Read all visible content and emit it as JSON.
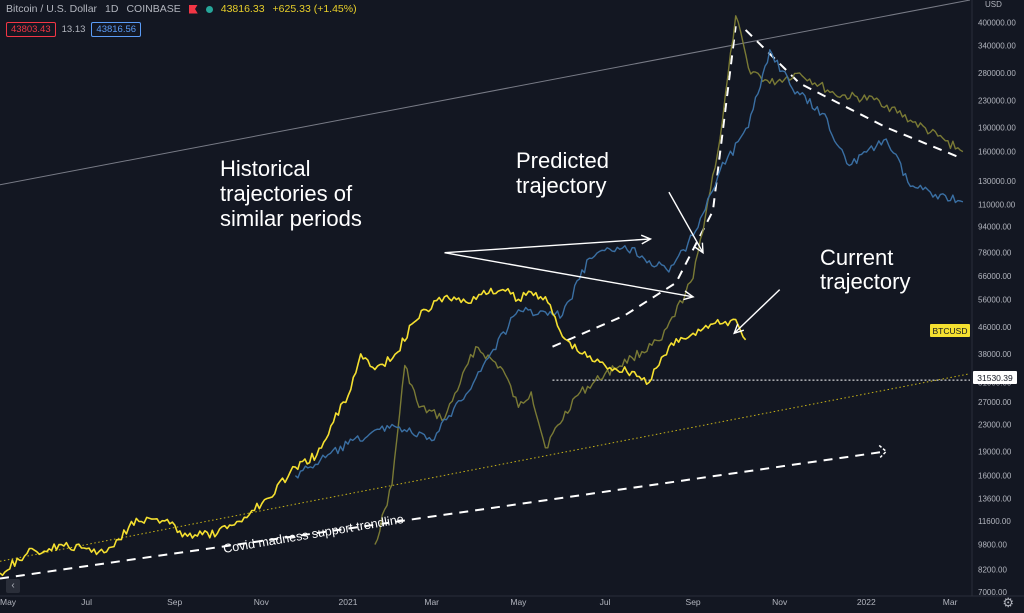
{
  "header": {
    "symbol": "Bitcoin / U.S. Dollar",
    "interval": "1D",
    "exchange": "COINBASE",
    "last_price": "43816.33",
    "change": "+625.33 (+1.45%)",
    "bid": "43803.43",
    "spread": "13.13",
    "ask": "43816.56"
  },
  "axis_currency": "USD",
  "price_tag": {
    "label": "BTCUSD"
  },
  "level_tag": "31530.39",
  "annotations": {
    "historical": [
      "Historical",
      "trajectories of",
      "similar periods"
    ],
    "predicted": [
      "Predicted",
      "trajectory"
    ],
    "current": [
      "Current",
      "trajectory"
    ],
    "support": "Covid madness support trendline"
  },
  "colors": {
    "background": "#131722",
    "current": "#f5e030",
    "hist_blue": "#3a6fa3",
    "hist_olive": "#7a7a35",
    "axis_text": "#b2b5be",
    "dashed": "#ffffff"
  },
  "icons": [
    "flag-icon",
    "market-open-icon",
    "collapse-icon",
    "settings-icon"
  ],
  "chart_data": {
    "type": "line",
    "yscale": "log",
    "ylim": [
      6800,
      470000
    ],
    "xlim": [
      "2020-05-01",
      "2022-03-15"
    ],
    "y_ticks": [
      "400000.00",
      "340000.00",
      "280000.00",
      "230000.00",
      "190000.00",
      "160000.00",
      "130000.00",
      "110000.00",
      "94000.00",
      "78000.00",
      "66000.00",
      "56000.00",
      "46000.00",
      "38000.00",
      "31000.00",
      "27000.00",
      "23000.00",
      "19000.00",
      "16000.00",
      "13600.00",
      "11600.00",
      "9800.00",
      "8200.00",
      "7000.00"
    ],
    "x_ticks": [
      {
        "date": "2020-05-01",
        "label": "May"
      },
      {
        "date": "2020-07-01",
        "label": "Jul"
      },
      {
        "date": "2020-09-01",
        "label": "Sep"
      },
      {
        "date": "2020-11-01",
        "label": "Nov"
      },
      {
        "date": "2021-01-01",
        "label": "2021"
      },
      {
        "date": "2021-03-01",
        "label": "Mar"
      },
      {
        "date": "2021-05-01",
        "label": "May"
      },
      {
        "date": "2021-07-01",
        "label": "Jul"
      },
      {
        "date": "2021-09-01",
        "label": "Sep"
      },
      {
        "date": "2021-11-01",
        "label": "Nov"
      },
      {
        "date": "2022-01-01",
        "label": "2022"
      },
      {
        "date": "2022-03-01",
        "label": "Mar"
      }
    ],
    "series": [
      {
        "key": "current",
        "color": "#f5e030",
        "x": [
          "2020-05-01",
          "2020-05-20",
          "2020-06-15",
          "2020-07-15",
          "2020-08-05",
          "2020-08-25",
          "2020-09-10",
          "2020-10-01",
          "2020-10-20",
          "2020-11-05",
          "2020-11-25",
          "2020-12-10",
          "2020-12-20",
          "2021-01-03",
          "2021-01-10",
          "2021-01-20",
          "2021-02-05",
          "2021-02-15",
          "2021-02-25",
          "2021-03-10",
          "2021-03-25",
          "2021-04-05",
          "2021-04-20",
          "2021-05-01",
          "2021-05-10",
          "2021-05-20",
          "2021-06-01",
          "2021-06-15",
          "2021-07-01",
          "2021-07-20",
          "2021-08-01",
          "2021-08-15",
          "2021-09-01",
          "2021-09-10",
          "2021-09-20",
          "2021-10-01",
          "2021-10-08"
        ],
        "y": [
          8000,
          9200,
          9700,
          9300,
          11800,
          11600,
          10400,
          10600,
          11900,
          13600,
          17000,
          18500,
          22800,
          29500,
          38000,
          34000,
          38500,
          47000,
          52000,
          57000,
          55000,
          58000,
          60000,
          56000,
          59000,
          57000,
          43000,
          38000,
          35000,
          33500,
          31000,
          40000,
          44000,
          46500,
          47000,
          48500,
          42000
        ]
      },
      {
        "key": "hist_blue",
        "color": "#3a6fa3",
        "x": [
          "2020-11-25",
          "2021-01-01",
          "2021-02-01",
          "2021-03-01",
          "2021-04-01",
          "2021-05-01",
          "2021-06-01",
          "2021-06-20",
          "2021-07-15",
          "2021-08-15",
          "2021-09-01",
          "2021-09-20",
          "2021-10-10",
          "2021-10-25",
          "2021-11-10",
          "2021-12-01",
          "2021-12-20",
          "2022-01-15",
          "2022-02-01",
          "2022-03-10"
        ],
        "y": [
          16000,
          20000,
          23000,
          20500,
          32000,
          52000,
          50000,
          75000,
          82000,
          68000,
          88000,
          140000,
          190000,
          330000,
          250000,
          210000,
          145000,
          175000,
          125000,
          112000
        ]
      },
      {
        "key": "hist_olive",
        "color": "#7a7a35",
        "x": [
          "2021-01-20",
          "2021-02-01",
          "2021-02-10",
          "2021-02-20",
          "2021-03-10",
          "2021-04-01",
          "2021-04-20",
          "2021-05-01",
          "2021-05-10",
          "2021-05-20",
          "2021-06-10",
          "2021-07-01",
          "2021-07-20",
          "2021-08-10",
          "2021-09-01",
          "2021-09-20",
          "2021-10-01",
          "2021-10-10",
          "2021-10-25",
          "2021-11-15",
          "2021-12-10",
          "2022-01-10",
          "2022-02-01",
          "2022-03-10"
        ],
        "y": [
          9800,
          15000,
          35000,
          26000,
          24000,
          40000,
          34000,
          26000,
          29000,
          19500,
          28000,
          33000,
          37000,
          42000,
          65000,
          175000,
          420000,
          290000,
          260000,
          280000,
          240000,
          230000,
          200000,
          160000
        ]
      }
    ],
    "guides": [
      {
        "key": "upper",
        "style": "solid",
        "color": "#787b86",
        "x": [
          "2020-04-25",
          "2022-03-15"
        ],
        "y": [
          125000,
          470000
        ]
      },
      {
        "key": "support",
        "style": "dashed",
        "color": "#ffffff",
        "x": [
          "2020-05-01",
          "2022-01-15"
        ],
        "y": [
          7700,
          19000
        ]
      },
      {
        "key": "dotted-trend",
        "style": "dotted",
        "color": "#c8b418",
        "x": [
          "2020-05-01",
          "2022-03-15"
        ],
        "y": [
          8700,
          33000
        ]
      },
      {
        "key": "prediction",
        "style": "dashed",
        "color": "#ffffff",
        "x": [
          "2021-05-25",
          "2021-07-15",
          "2021-08-20",
          "2021-09-15",
          "2021-10-01"
        ],
        "y": [
          40000,
          50000,
          63000,
          105000,
          390000
        ]
      },
      {
        "key": "prediction-down",
        "style": "dashed",
        "color": "#ffffff",
        "x": [
          "2021-10-08",
          "2021-11-15",
          "2022-01-15",
          "2022-03-10"
        ],
        "y": [
          380000,
          260000,
          190000,
          152000
        ]
      }
    ],
    "level_line": {
      "y": 31530.39,
      "x_start": "2021-05-25"
    },
    "arrows": [
      {
        "from": [
          "2021-03-10",
          78000
        ],
        "to": [
          "2021-08-02",
          86000
        ]
      },
      {
        "from": [
          "2021-03-10",
          78000
        ],
        "to": [
          "2021-09-01",
          57000
        ]
      },
      {
        "from": [
          "2021-08-15",
          120000
        ],
        "to": [
          "2021-09-08",
          78000
        ]
      },
      {
        "from": [
          "2021-11-01",
          60000
        ],
        "to": [
          "2021-09-30",
          44000
        ]
      }
    ]
  }
}
